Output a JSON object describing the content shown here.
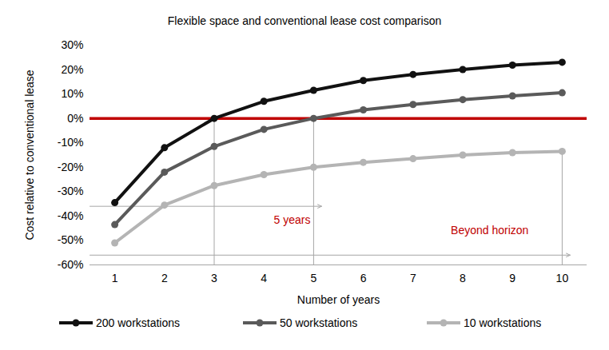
{
  "chart_data": {
    "type": "line",
    "title": "Flexible space and conventional lease cost comparison",
    "x_label": "Number of years",
    "y_label": "Cost relative to conventional lease",
    "x": [
      1,
      2,
      3,
      4,
      5,
      6,
      7,
      8,
      9,
      10
    ],
    "series": [
      {
        "name": "200 workstations",
        "color": "#111111",
        "marker": "circle",
        "values": [
          -34.5,
          -12,
          0,
          7,
          11.5,
          15.5,
          18,
          20,
          21.8,
          23
        ]
      },
      {
        "name": "50 workstations",
        "color": "#5a5a5a",
        "marker": "circle",
        "values": [
          -43.5,
          -22,
          -11.5,
          -4.5,
          0,
          3.5,
          5.7,
          7.7,
          9.2,
          10.5
        ]
      },
      {
        "name": "10 workstations",
        "color": "#b4b4b4",
        "marker": "circle",
        "values": [
          -51,
          -35.5,
          -27.5,
          -23,
          -20,
          -18,
          -16.5,
          -15,
          -14,
          -13.5
        ]
      }
    ],
    "xlim": [
      0.5,
      10.5
    ],
    "xticks": [
      1,
      2,
      3,
      4,
      5,
      6,
      7,
      8,
      9,
      10
    ],
    "ylim": [
      -60,
      30
    ],
    "yticks": [
      {
        "value": -60,
        "label": "-60%"
      },
      {
        "value": -50,
        "label": "-50%"
      },
      {
        "value": -40,
        "label": "-40%"
      },
      {
        "value": -30,
        "label": "-30%"
      },
      {
        "value": -20,
        "label": "-20%"
      },
      {
        "value": -10,
        "label": "-10%"
      },
      {
        "value": 0,
        "label": "0%"
      },
      {
        "value": 10,
        "label": "10%"
      },
      {
        "value": 20,
        "label": "20%"
      },
      {
        "value": 30,
        "label": "30%"
      }
    ],
    "reference_line": {
      "value": 0,
      "color": "#c00000"
    },
    "annotations": [
      {
        "text": "5 years",
        "x": 5,
        "y": -36,
        "color": "#c00000"
      },
      {
        "text": "Beyond horizon",
        "x": 10,
        "y": -56,
        "color": "#c00000"
      }
    ],
    "grid": false,
    "legend": "bottom"
  }
}
